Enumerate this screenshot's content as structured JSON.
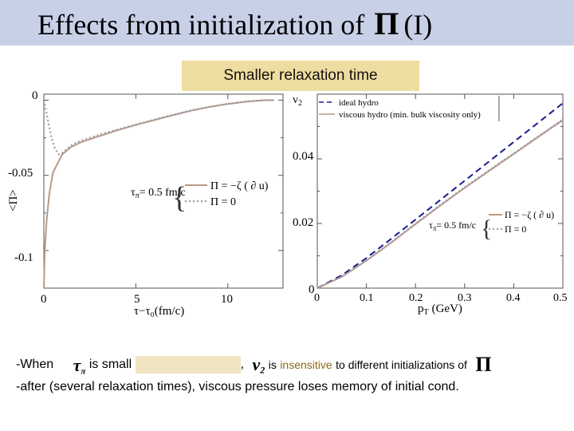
{
  "title": {
    "text": "Effects from initialization of",
    "symbol": "Π",
    "suffix": "(I)"
  },
  "banner": "Smaller relaxation time",
  "left_plot": {
    "ylabel": "<Π>",
    "xlabel": "τ−τ₀(fm/c)",
    "yticks": [
      "0",
      "-0.05",
      "-0.1"
    ],
    "xticks": [
      "0",
      "5",
      "10"
    ],
    "annotation_tau": "τ",
    "annotation_tau_sub": "π",
    "annotation_value": "= 0.5 fm/c",
    "legend": [
      "Π = −ζ ( ∂ u)",
      "Π = 0"
    ]
  },
  "right_plot": {
    "ylabel": "v",
    "ylabel_sub": "2",
    "xlabel": "p",
    "xlabel_sub": "T",
    "xlabel_unit": "(GeV)",
    "yticks": [
      "0",
      "0.02",
      "0.04"
    ],
    "xticks": [
      "0",
      "0.1",
      "0.2",
      "0.3",
      "0.4",
      "0.5"
    ],
    "legend_top": [
      "ideal hydro",
      "viscous hydro (min. bulk viscosity only)"
    ],
    "annotation_tau": "τ",
    "annotation_tau_sub": "π",
    "annotation_value": "= 0.5 fm/c",
    "legend": [
      "Π = −ζ ( ∂ u)",
      "Π = 0"
    ]
  },
  "bottom": {
    "line1_a": "-When",
    "line1_tau": "τ",
    "line1_tau_sub": "π",
    "line1_b": "is small",
    "line1_comma": ",",
    "line1_v": "v",
    "line1_v_sub": "2",
    "line1_c": "is",
    "line1_insensitive": "insensitive",
    "line1_d": "to different initializations of",
    "line1_pi": "Π",
    "line2": "-after (several relaxation times), viscous pressure loses memory of initial cond."
  },
  "colors": {
    "title_bar": "#c8d0e8",
    "banner": "#eedda0",
    "viscous": "#b89a88",
    "ideal": "#1a1a8c",
    "dotted": "#9a9aa8"
  },
  "chart_data": [
    {
      "type": "line",
      "xlabel": "τ−τ₀(fm/c)",
      "ylabel": "<Π>",
      "xlim": [
        0,
        13
      ],
      "ylim": [
        -0.125,
        0.004
      ],
      "series": [
        {
          "name": "Π = −ζ ( ∂ u)",
          "x": [
            0,
            0.05,
            0.15,
            0.3,
            0.5,
            1,
            1.5,
            2,
            3,
            4,
            5,
            6,
            7,
            8,
            9,
            10,
            11,
            12,
            12.5
          ],
          "y": [
            -0.125,
            -0.1,
            -0.08,
            -0.062,
            -0.048,
            -0.036,
            -0.031,
            -0.028,
            -0.024,
            -0.02,
            -0.0165,
            -0.0132,
            -0.01,
            -0.007,
            -0.0045,
            -0.0025,
            -0.001,
            0,
            0
          ]
        },
        {
          "name": "Π = 0",
          "x": [
            0,
            0.2,
            0.4,
            0.6,
            0.8,
            1,
            1.3,
            1.6,
            2,
            3,
            4,
            5,
            6,
            7,
            8,
            9,
            10,
            11,
            12,
            12.5
          ],
          "y": [
            0,
            -0.012,
            -0.024,
            -0.032,
            -0.036,
            -0.035,
            -0.032,
            -0.029,
            -0.027,
            -0.023,
            -0.0195,
            -0.0162,
            -0.013,
            -0.0098,
            -0.0068,
            -0.0044,
            -0.0024,
            -0.0009,
            0,
            0
          ]
        }
      ]
    },
    {
      "type": "line",
      "xlabel": "p_T (GeV)",
      "ylabel": "v_2",
      "xlim": [
        0,
        0.5
      ],
      "ylim": [
        0,
        0.06
      ],
      "series": [
        {
          "name": "ideal hydro",
          "x": [
            0,
            0.05,
            0.1,
            0.15,
            0.2,
            0.25,
            0.3,
            0.35,
            0.4,
            0.45,
            0.5
          ],
          "y": [
            0,
            0.004,
            0.0093,
            0.0152,
            0.0212,
            0.0272,
            0.0332,
            0.0392,
            0.0452,
            0.0512,
            0.0572
          ]
        },
        {
          "name": "viscous hydro (min. bulk viscosity only)",
          "x": [
            0,
            0.05,
            0.1,
            0.15,
            0.2,
            0.25,
            0.3,
            0.35,
            0.4,
            0.45,
            0.5
          ],
          "y": [
            0,
            0.0035,
            0.0085,
            0.014,
            0.0198,
            0.0255,
            0.031,
            0.0363,
            0.0415,
            0.0468,
            0.052
          ]
        },
        {
          "name": "Π = 0",
          "x": [
            0,
            0.05,
            0.1,
            0.15,
            0.2,
            0.25,
            0.3,
            0.35,
            0.4,
            0.45,
            0.5
          ],
          "y": [
            0,
            0.0036,
            0.0086,
            0.0142,
            0.02,
            0.0257,
            0.0312,
            0.0365,
            0.0417,
            0.047,
            0.0522
          ]
        }
      ]
    }
  ]
}
